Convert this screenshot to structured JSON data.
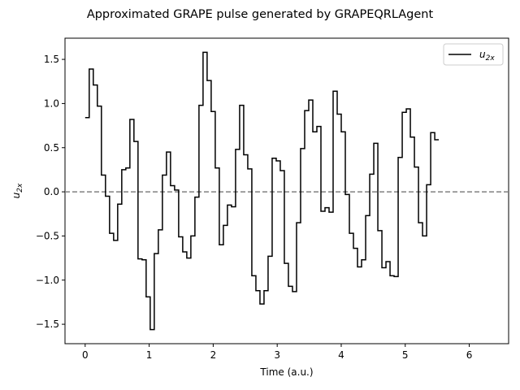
{
  "chart_data": {
    "type": "line",
    "title": "Approximated GRAPE pulse generated by GRAPEQRLAgent",
    "xlabel": "Time (a.u.)",
    "ylabel_main": "u",
    "ylabel_sub": "2x",
    "xlim": [
      -0.315,
      6.615
    ],
    "ylim": [
      -1.72,
      1.74
    ],
    "xticks": [
      0,
      1,
      2,
      3,
      4,
      5,
      6
    ],
    "yticks": [
      -1.5,
      -1.0,
      -0.5,
      0.0,
      0.5,
      1.0,
      1.5
    ],
    "ytick_labels": [
      "−1.5",
      "−1.0",
      "−0.5",
      "0.0",
      "0.5",
      "1.0",
      "1.5"
    ],
    "reference_line": {
      "y": 0.0,
      "style": "dashed",
      "color": "#808080"
    },
    "legend": {
      "placement": "top-right",
      "entries": [
        {
          "main": "u",
          "sub": "2x"
        }
      ]
    },
    "step_width": 0.0635,
    "series": [
      {
        "style": "steps-post",
        "color": "#000000",
        "x_start": 0.0,
        "values": [
          0.84,
          1.39,
          1.21,
          0.97,
          0.19,
          -0.05,
          -0.47,
          -0.55,
          -0.14,
          0.25,
          0.27,
          0.82,
          0.57,
          -0.76,
          -0.77,
          -1.19,
          -1.56,
          -0.7,
          -0.43,
          0.19,
          0.45,
          0.07,
          0.02,
          -0.51,
          -0.68,
          -0.75,
          -0.5,
          -0.06,
          0.98,
          1.58,
          1.26,
          0.91,
          0.27,
          -0.6,
          -0.38,
          -0.15,
          -0.17,
          0.48,
          0.98,
          0.42,
          0.26,
          -0.95,
          -1.12,
          -1.27,
          -1.12,
          -0.73,
          0.38,
          0.35,
          0.24,
          -0.81,
          -1.07,
          -1.13,
          -0.35,
          0.49,
          0.92,
          1.04,
          0.68,
          0.74,
          -0.22,
          -0.18,
          -0.23,
          1.14,
          0.88,
          0.68,
          -0.03,
          -0.47,
          -0.64,
          -0.85,
          -0.77,
          -0.27,
          0.2,
          0.55,
          -0.44,
          -0.86,
          -0.79,
          -0.95,
          -0.96,
          0.39,
          0.9,
          0.94,
          0.62,
          0.28,
          -0.35,
          -0.5,
          0.08,
          0.67,
          0.59
        ]
      }
    ]
  }
}
